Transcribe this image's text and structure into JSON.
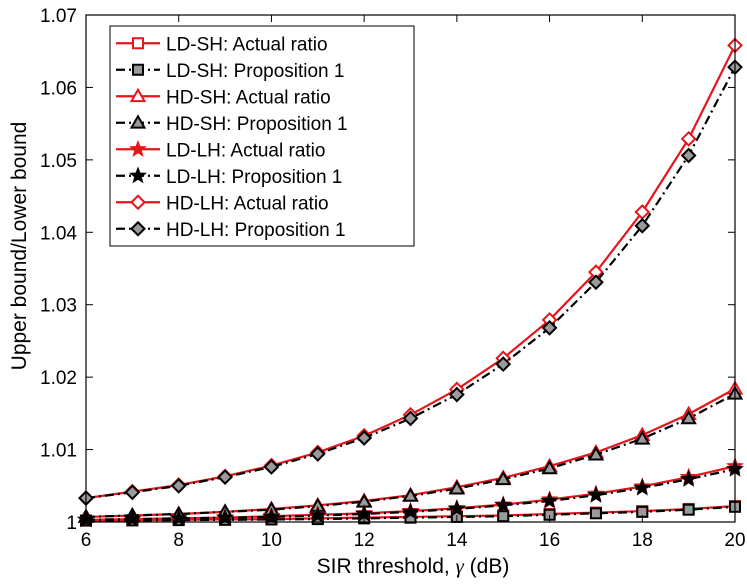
{
  "chart_data": {
    "type": "line",
    "xlabel_text": "SIR threshold, ",
    "xlabel_symbol": "γ",
    "xlabel_unit": " (dB)",
    "ylabel": "Upper bound/Lower bound",
    "xlim": [
      6,
      20
    ],
    "ylim": [
      1,
      1.07
    ],
    "xticks": [
      "6",
      "8",
      "10",
      "12",
      "14",
      "16",
      "18",
      "20"
    ],
    "yticks": [
      "1",
      "1.01",
      "1.02",
      "1.03",
      "1.04",
      "1.05",
      "1.06",
      "1.07"
    ],
    "grid": false,
    "legend_position": "top-left",
    "x": [
      6,
      7,
      8,
      9,
      10,
      11,
      12,
      13,
      14,
      15,
      16,
      17,
      18,
      19,
      20
    ],
    "series": [
      {
        "name": "LD-SH: Actual ratio",
        "color": "#e8141b",
        "marker": "square",
        "dash": "solid",
        "values": [
          1.0002,
          1.00025,
          1.0003,
          1.00035,
          1.0004,
          1.0005,
          1.0006,
          1.0007,
          1.0008,
          1.0009,
          1.0011,
          1.0013,
          1.0015,
          1.0018,
          1.0022
        ]
      },
      {
        "name": "LD-SH: Proposition 1",
        "color": "#000000",
        "marker": "square",
        "dash": "dashdot",
        "values": [
          1.0002,
          1.00022,
          1.00026,
          1.0003,
          1.00035,
          1.0004,
          1.0005,
          1.0006,
          1.0007,
          1.0008,
          1.001,
          1.0012,
          1.0014,
          1.0017,
          1.0021
        ]
      },
      {
        "name": "HD-SH: Actual ratio",
        "color": "#e8141b",
        "marker": "triangle",
        "dash": "solid",
        "values": [
          1.0007,
          1.0009,
          1.0011,
          1.0014,
          1.0018,
          1.0023,
          1.0029,
          1.0037,
          1.0048,
          1.0061,
          1.0077,
          1.0096,
          1.012,
          1.0149,
          1.0184
        ]
      },
      {
        "name": "HD-SH: Proposition 1",
        "color": "#000000",
        "marker": "triangle",
        "dash": "dashdot",
        "values": [
          1.0007,
          1.0009,
          1.0011,
          1.0014,
          1.0017,
          1.0022,
          1.0028,
          1.0036,
          1.0046,
          1.0059,
          1.0074,
          1.0093,
          1.0115,
          1.0143,
          1.0177
        ]
      },
      {
        "name": "LD-LH: Actual ratio",
        "color": "#e8141b",
        "marker": "star",
        "dash": "solid",
        "values": [
          1.0003,
          1.0004,
          1.0005,
          1.0006,
          1.0008,
          1.001,
          1.0012,
          1.0015,
          1.0019,
          1.0024,
          1.0031,
          1.0039,
          1.0049,
          1.0062,
          1.0077
        ]
      },
      {
        "name": "LD-LH: Proposition 1",
        "color": "#000000",
        "marker": "star",
        "dash": "dashdot",
        "values": [
          1.0003,
          1.0004,
          1.0005,
          1.0006,
          1.0007,
          1.0009,
          1.0011,
          1.0014,
          1.0018,
          1.0023,
          1.0029,
          1.0037,
          1.0047,
          1.0059,
          1.0073
        ]
      },
      {
        "name": "HD-LH: Actual ratio",
        "color": "#e8141b",
        "marker": "diamond",
        "dash": "solid",
        "values": [
          1.0033,
          1.0042,
          1.0051,
          1.0063,
          1.0078,
          1.0096,
          1.0119,
          1.0148,
          1.0183,
          1.0226,
          1.0279,
          1.0345,
          1.0428,
          1.0529,
          1.0658
        ]
      },
      {
        "name": "HD-LH: Proposition 1",
        "color": "#000000",
        "marker": "diamond",
        "dash": "dashdot",
        "values": [
          1.0033,
          1.0041,
          1.005,
          1.0062,
          1.0076,
          1.0094,
          1.0116,
          1.0143,
          1.0176,
          1.0218,
          1.0268,
          1.0331,
          1.0409,
          1.0506,
          1.0628
        ]
      }
    ]
  }
}
